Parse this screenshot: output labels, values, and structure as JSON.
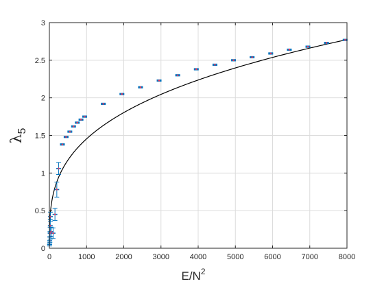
{
  "chart_data": {
    "type": "scatter",
    "xlabel": "E/N",
    "xlabel_sup": "2",
    "ylabel": "λ",
    "ylabel_sub": "5",
    "xlim": [
      0,
      8000
    ],
    "ylim": [
      0,
      3
    ],
    "xticks": [
      0,
      1000,
      2000,
      3000,
      4000,
      5000,
      6000,
      7000,
      8000
    ],
    "yticks": [
      0,
      0.5,
      1,
      1.5,
      2,
      2.5,
      3
    ],
    "xtick_labels": [
      "0",
      "1000",
      "2000",
      "3000",
      "4000",
      "5000",
      "6000",
      "7000",
      "8000"
    ],
    "ytick_labels": [
      "0",
      "0.5",
      "1",
      "1.5",
      "2",
      "2.5",
      "3"
    ],
    "grid": true,
    "colors": {
      "errorbar": "#0072BD",
      "point": "#ff3355",
      "curve": "#000000"
    },
    "series": [
      {
        "type": "errorbar",
        "points": [
          {
            "x": 5,
            "y": 0.05,
            "err": 0.02
          },
          {
            "x": 10,
            "y": 0.1,
            "err": 0.05
          },
          {
            "x": 15,
            "y": 0.15,
            "err": 0.07
          },
          {
            "x": 20,
            "y": 0.2,
            "err": 0.08
          },
          {
            "x": 25,
            "y": 0.3,
            "err": 0.08
          },
          {
            "x": 30,
            "y": 0.42,
            "err": 0.06
          },
          {
            "x": 50,
            "y": 0.22,
            "err": 0.06
          },
          {
            "x": 100,
            "y": 0.2,
            "err": 0.07
          },
          {
            "x": 150,
            "y": 0.45,
            "err": 0.08
          },
          {
            "x": 200,
            "y": 0.78,
            "err": 0.1
          },
          {
            "x": 250,
            "y": 1.06,
            "err": 0.08
          },
          {
            "x": 350,
            "y": 1.38,
            "err": 0.01
          },
          {
            "x": 450,
            "y": 1.48,
            "err": 0.01
          },
          {
            "x": 550,
            "y": 1.55,
            "err": 0.01
          },
          {
            "x": 650,
            "y": 1.62,
            "err": 0.01
          },
          {
            "x": 750,
            "y": 1.67,
            "err": 0.01
          },
          {
            "x": 850,
            "y": 1.71,
            "err": 0.01
          },
          {
            "x": 950,
            "y": 1.75,
            "err": 0.01
          },
          {
            "x": 1450,
            "y": 1.92,
            "err": 0.01
          },
          {
            "x": 1950,
            "y": 2.05,
            "err": 0.01
          },
          {
            "x": 2450,
            "y": 2.14,
            "err": 0.01
          },
          {
            "x": 2950,
            "y": 2.23,
            "err": 0.01
          },
          {
            "x": 3450,
            "y": 2.3,
            "err": 0.01
          },
          {
            "x": 3950,
            "y": 2.38,
            "err": 0.01
          },
          {
            "x": 4450,
            "y": 2.44,
            "err": 0.01
          },
          {
            "x": 4950,
            "y": 2.5,
            "err": 0.01
          },
          {
            "x": 5450,
            "y": 2.54,
            "err": 0.01
          },
          {
            "x": 5950,
            "y": 2.59,
            "err": 0.01
          },
          {
            "x": 6450,
            "y": 2.64,
            "err": 0.01
          },
          {
            "x": 6950,
            "y": 2.68,
            "err": 0.01
          },
          {
            "x": 7450,
            "y": 2.73,
            "err": 0.01
          },
          {
            "x": 7950,
            "y": 2.77,
            "err": 0.01
          }
        ]
      },
      {
        "type": "line",
        "function": "a*x^p",
        "a": 0.1703,
        "p": 0.3105,
        "x_range": [
          1,
          8000
        ]
      }
    ]
  }
}
